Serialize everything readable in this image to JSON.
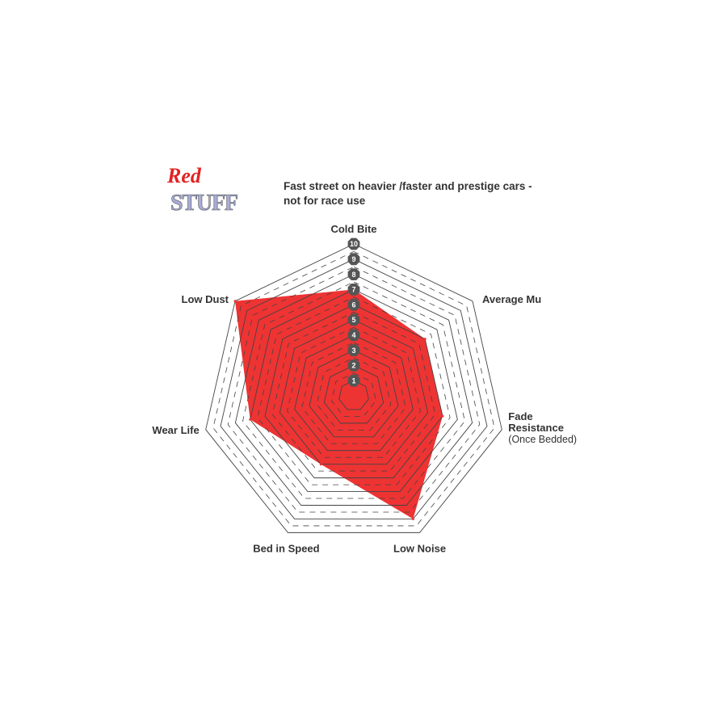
{
  "logo": {
    "line1": "Red",
    "line2": "STUFF"
  },
  "title": "Fast street on heavier /faster and prestige cars - not for race use",
  "chart_data": {
    "type": "radar",
    "axes": [
      "Cold Bite",
      "Average Mu",
      "Fade Resistance",
      "Low Noise",
      "Bed in Speed",
      "Wear Life",
      "Low Dust"
    ],
    "axis_sublabels": {
      "Fade Resistance": "(Once Bedded)"
    },
    "values": [
      7,
      6,
      6,
      9,
      5,
      7,
      10
    ],
    "range": [
      0,
      10
    ],
    "ticks": [
      "1",
      "2",
      "3",
      "4",
      "5",
      "6",
      "7",
      "8",
      "9",
      "10"
    ],
    "fill_color": "#ee3333",
    "grid": true
  }
}
